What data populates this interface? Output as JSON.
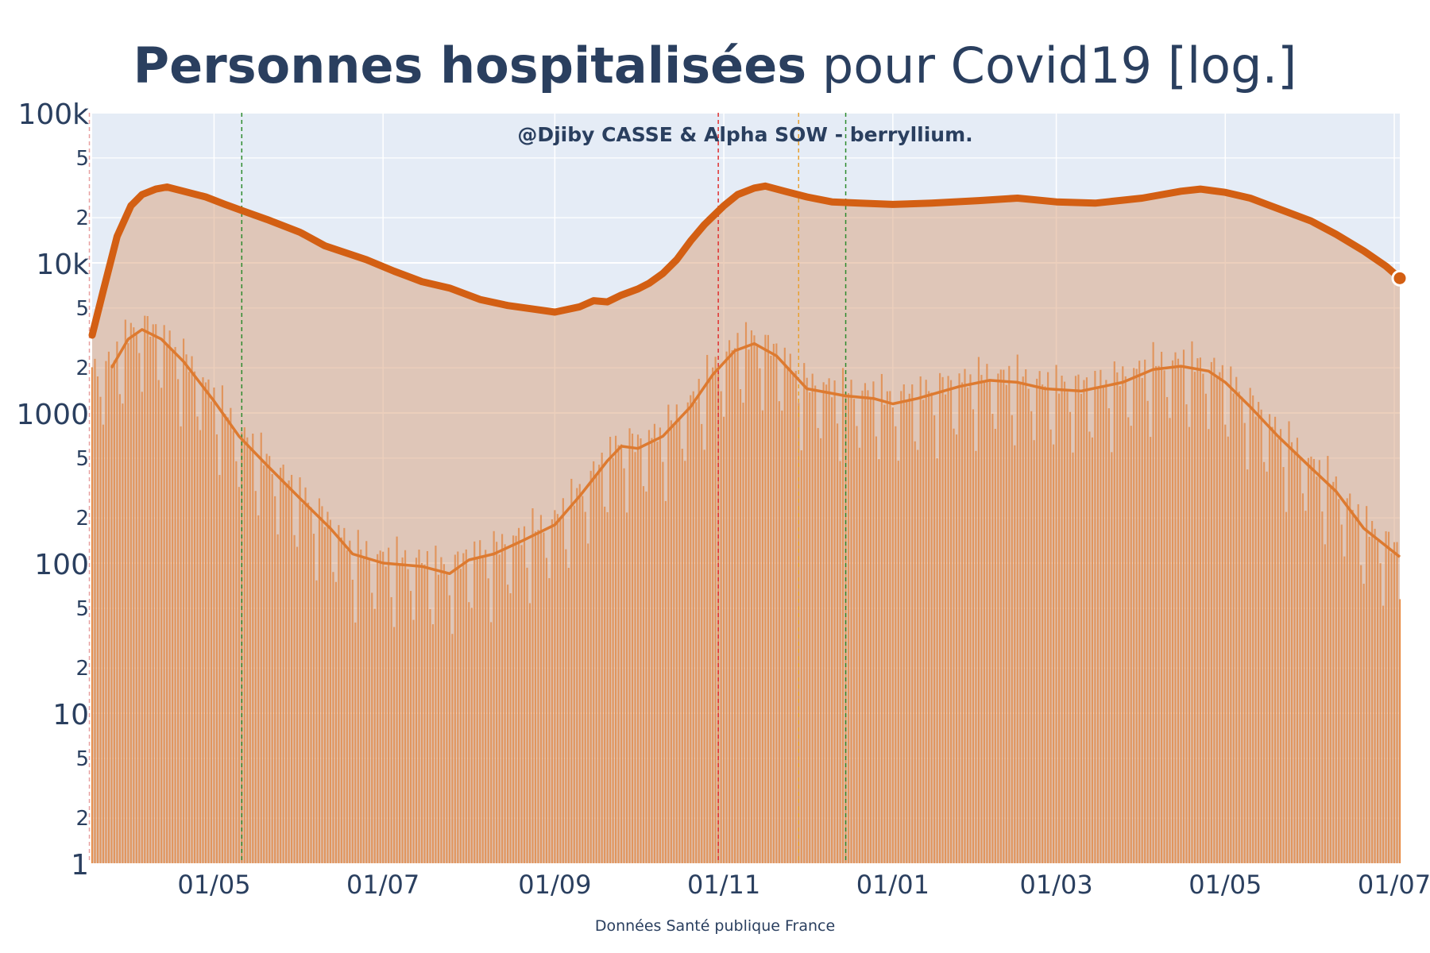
{
  "chart_data": {
    "type": "line",
    "title_bold": "Personnes hospitalisées",
    "title_rest": " pour Covid19 [log.]",
    "annotation": "@Djiby CASSE & Alpha SOW - berryllium.",
    "footer": "Données Santé publique France",
    "yscale": "log",
    "ylim": [
      1,
      100000
    ],
    "y_major_ticks": [
      {
        "value": 1,
        "label": "1"
      },
      {
        "value": 10,
        "label": "10"
      },
      {
        "value": 100,
        "label": "100"
      },
      {
        "value": 1000,
        "label": "1000"
      },
      {
        "value": 10000,
        "label": "10k"
      },
      {
        "value": 100000,
        "label": "100k"
      }
    ],
    "y_minor_ticks": [
      {
        "value": 2,
        "label": "2"
      },
      {
        "value": 5,
        "label": "5"
      },
      {
        "value": 20,
        "label": "2"
      },
      {
        "value": 50,
        "label": "5"
      },
      {
        "value": 200,
        "label": "2"
      },
      {
        "value": 500,
        "label": "5"
      },
      {
        "value": 2000,
        "label": "2"
      },
      {
        "value": 5000,
        "label": "5"
      },
      {
        "value": 20000,
        "label": "2"
      },
      {
        "value": 50000,
        "label": "5"
      }
    ],
    "x_range": [
      "2020-03-18",
      "2021-07-03"
    ],
    "x_ticks": [
      {
        "date": "2020-05-01",
        "label": "01/05"
      },
      {
        "date": "2020-07-01",
        "label": "01/07"
      },
      {
        "date": "2020-09-01",
        "label": "01/09"
      },
      {
        "date": "2020-11-01",
        "label": "01/11"
      },
      {
        "date": "2021-01-01",
        "label": "01/01"
      },
      {
        "date": "2021-03-01",
        "label": "01/03"
      },
      {
        "date": "2021-05-01",
        "label": "01/05"
      },
      {
        "date": "2021-07-01",
        "label": "01/07"
      }
    ],
    "vlines": [
      {
        "date": "2020-03-17",
        "color": "#e8a0a0"
      },
      {
        "date": "2020-05-11",
        "color": "#2e8b2e"
      },
      {
        "date": "2020-10-30",
        "color": "#e03030"
      },
      {
        "date": "2020-11-28",
        "color": "#e8a030"
      },
      {
        "date": "2020-12-15",
        "color": "#2e8b2e"
      }
    ],
    "colors": {
      "accent": "#d35f13",
      "fill": "#e0c4b0",
      "bars": "#e88a40",
      "plot_bg": "#e5ecf6",
      "grid": "#ffffff"
    },
    "series": [
      {
        "kind": "hospitalized",
        "points": [
          [
            "2020-03-18",
            3300
          ],
          [
            "2020-03-22",
            6500
          ],
          [
            "2020-03-27",
            15000
          ],
          [
            "2020-04-01",
            24000
          ],
          [
            "2020-04-05",
            28500
          ],
          [
            "2020-04-10",
            31000
          ],
          [
            "2020-04-14",
            32000
          ],
          [
            "2020-04-20",
            30000
          ],
          [
            "2020-04-28",
            27500
          ],
          [
            "2020-05-05",
            24500
          ],
          [
            "2020-05-12",
            22000
          ],
          [
            "2020-05-20",
            19500
          ],
          [
            "2020-06-01",
            16000
          ],
          [
            "2020-06-10",
            13000
          ],
          [
            "2020-06-25",
            10500
          ],
          [
            "2020-07-05",
            8800
          ],
          [
            "2020-07-15",
            7500
          ],
          [
            "2020-07-25",
            6800
          ],
          [
            "2020-08-05",
            5700
          ],
          [
            "2020-08-15",
            5200
          ],
          [
            "2020-08-25",
            4900
          ],
          [
            "2020-09-01",
            4700
          ],
          [
            "2020-09-10",
            5100
          ],
          [
            "2020-09-15",
            5600
          ],
          [
            "2020-09-20",
            5500
          ],
          [
            "2020-09-25",
            6100
          ],
          [
            "2020-10-01",
            6700
          ],
          [
            "2020-10-05",
            7300
          ],
          [
            "2020-10-10",
            8500
          ],
          [
            "2020-10-15",
            10500
          ],
          [
            "2020-10-20",
            14000
          ],
          [
            "2020-10-25",
            18000
          ],
          [
            "2020-11-01",
            24000
          ],
          [
            "2020-11-06",
            28500
          ],
          [
            "2020-11-12",
            31500
          ],
          [
            "2020-11-16",
            32500
          ],
          [
            "2020-11-23",
            30000
          ],
          [
            "2020-12-01",
            27500
          ],
          [
            "2020-12-10",
            25500
          ],
          [
            "2020-12-20",
            25000
          ],
          [
            "2021-01-01",
            24500
          ],
          [
            "2021-01-15",
            25000
          ],
          [
            "2021-02-01",
            26000
          ],
          [
            "2021-02-15",
            27000
          ],
          [
            "2021-03-01",
            25500
          ],
          [
            "2021-03-15",
            25000
          ],
          [
            "2021-04-01",
            27000
          ],
          [
            "2021-04-15",
            30000
          ],
          [
            "2021-04-22",
            31000
          ],
          [
            "2021-05-01",
            29500
          ],
          [
            "2021-05-10",
            27000
          ],
          [
            "2021-05-20",
            23000
          ],
          [
            "2021-06-01",
            19000
          ],
          [
            "2021-06-10",
            15500
          ],
          [
            "2021-06-20",
            12000
          ],
          [
            "2021-06-28",
            9500
          ],
          [
            "2021-07-03",
            7900
          ]
        ]
      },
      {
        "kind": "new_admissions_7d_avg",
        "points": [
          [
            "2020-03-25",
            2000
          ],
          [
            "2020-03-31",
            3100
          ],
          [
            "2020-04-05",
            3600
          ],
          [
            "2020-04-12",
            3100
          ],
          [
            "2020-04-20",
            2200
          ],
          [
            "2020-05-01",
            1200
          ],
          [
            "2020-05-10",
            700
          ],
          [
            "2020-05-20",
            450
          ],
          [
            "2020-06-01",
            270
          ],
          [
            "2020-06-12",
            170
          ],
          [
            "2020-06-20",
            115
          ],
          [
            "2020-07-01",
            100
          ],
          [
            "2020-07-15",
            95
          ],
          [
            "2020-07-25",
            85
          ],
          [
            "2020-08-01",
            105
          ],
          [
            "2020-08-10",
            115
          ],
          [
            "2020-08-20",
            140
          ],
          [
            "2020-09-01",
            180
          ],
          [
            "2020-09-10",
            280
          ],
          [
            "2020-09-20",
            480
          ],
          [
            "2020-09-25",
            600
          ],
          [
            "2020-10-01",
            580
          ],
          [
            "2020-10-10",
            700
          ],
          [
            "2020-10-20",
            1100
          ],
          [
            "2020-10-28",
            1800
          ],
          [
            "2020-11-05",
            2600
          ],
          [
            "2020-11-12",
            2900
          ],
          [
            "2020-11-20",
            2400
          ],
          [
            "2020-12-01",
            1450
          ],
          [
            "2020-12-15",
            1300
          ],
          [
            "2020-12-25",
            1250
          ],
          [
            "2021-01-01",
            1150
          ],
          [
            "2021-01-10",
            1250
          ],
          [
            "2021-01-25",
            1500
          ],
          [
            "2021-02-05",
            1650
          ],
          [
            "2021-02-15",
            1600
          ],
          [
            "2021-02-25",
            1450
          ],
          [
            "2021-03-10",
            1400
          ],
          [
            "2021-03-25",
            1600
          ],
          [
            "2021-04-05",
            1950
          ],
          [
            "2021-04-15",
            2050
          ],
          [
            "2021-04-25",
            1900
          ],
          [
            "2021-05-01",
            1600
          ],
          [
            "2021-05-10",
            1100
          ],
          [
            "2021-05-20",
            700
          ],
          [
            "2021-06-01",
            430
          ],
          [
            "2021-06-10",
            300
          ],
          [
            "2021-06-20",
            170
          ],
          [
            "2021-07-03",
            110
          ]
        ]
      }
    ]
  }
}
